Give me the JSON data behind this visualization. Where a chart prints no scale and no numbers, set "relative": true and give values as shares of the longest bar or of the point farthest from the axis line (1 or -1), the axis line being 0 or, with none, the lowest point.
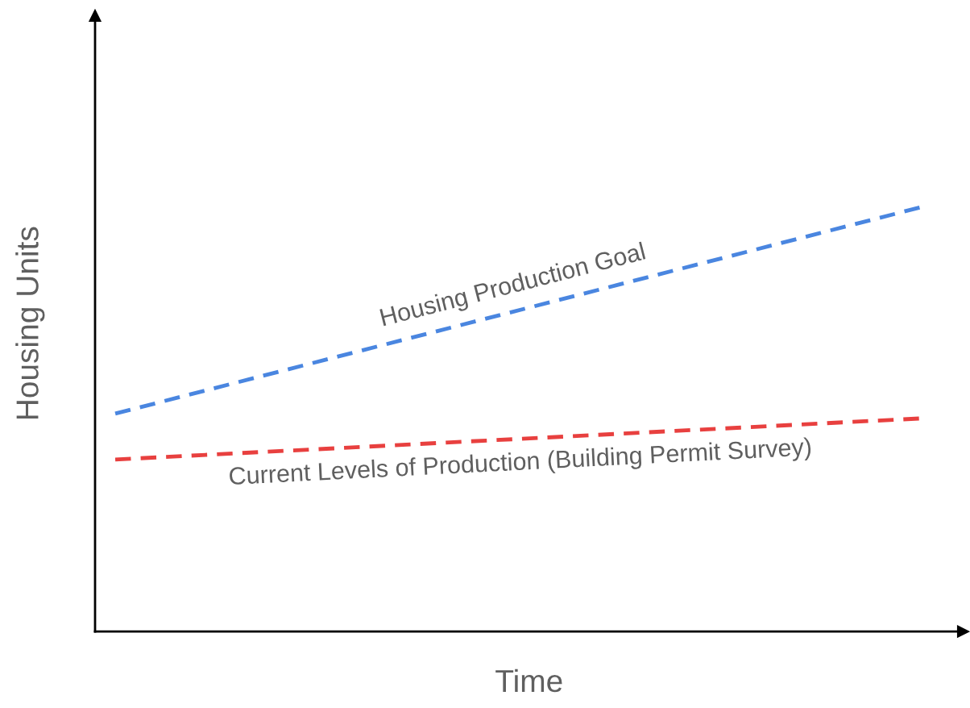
{
  "chart_data": {
    "type": "line",
    "relative": true,
    "xlabel": "Time",
    "ylabel": "Housing Units",
    "categories": [
      null,
      null
    ],
    "line_style": "dashed",
    "marker": "none",
    "grid": false,
    "series": [
      {
        "name": "Housing Production Goal",
        "color": "#4a86e0",
        "values": [
          0.513,
          1.0
        ]
      },
      {
        "name": "Current Levels of Production (Building Permit Survey)",
        "color": "#e8403f",
        "values": [
          0.405,
          0.502
        ]
      }
    ]
  }
}
